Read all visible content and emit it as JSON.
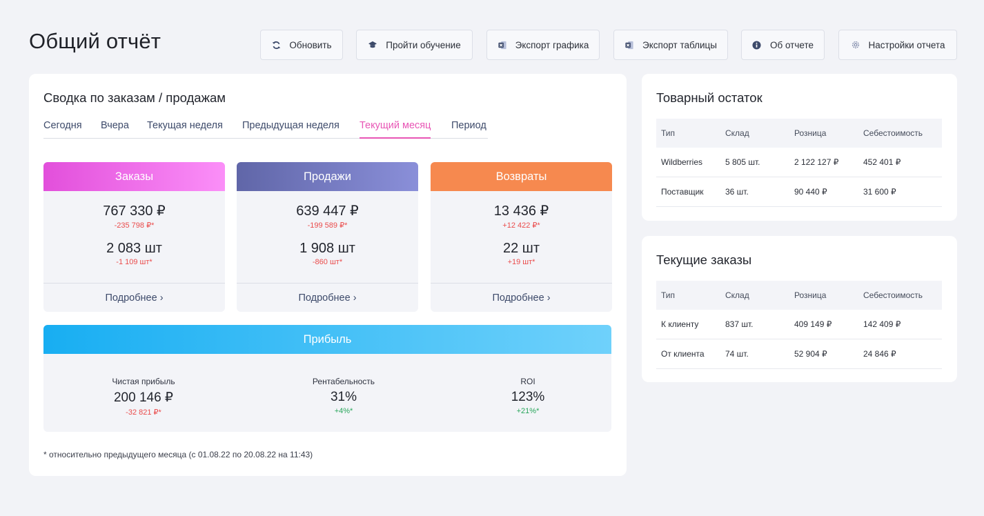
{
  "page": {
    "title": "Общий отчёт"
  },
  "toolbar": [
    {
      "label": "Обновить",
      "icon": "refresh-icon"
    },
    {
      "label": "Пройти обучение",
      "icon": "graduation-cap-icon"
    },
    {
      "label": "Экспорт графика",
      "icon": "excel-icon"
    },
    {
      "label": "Экспорт таблицы",
      "icon": "excel-icon"
    },
    {
      "label": "Об отчете",
      "icon": "info-icon"
    },
    {
      "label": "Настройки отчета",
      "icon": "gear-icon"
    }
  ],
  "summary": {
    "title": "Сводка по заказам / продажам",
    "tabs": [
      {
        "label": "Сегодня"
      },
      {
        "label": "Вчера"
      },
      {
        "label": "Текущая неделя"
      },
      {
        "label": "Предыдущая неделя"
      },
      {
        "label": "Текущий месяц"
      },
      {
        "label": "Период"
      }
    ],
    "active_tab": "Текущий месяц",
    "metrics": [
      {
        "title": "Заказы",
        "amount": "767 330 ₽",
        "amount_delta": "-235 798 ₽*",
        "qty": "2 083 шт",
        "qty_delta": "-1 109 шт*",
        "more": "Подробнее ›"
      },
      {
        "title": "Продажи",
        "amount": "639 447 ₽",
        "amount_delta": "-199 589 ₽*",
        "qty": "1 908 шт",
        "qty_delta": "-860 шт*",
        "more": "Подробнее ›"
      },
      {
        "title": "Возвраты",
        "amount": "13 436 ₽",
        "amount_delta": "+12 422 ₽*",
        "qty": "22 шт",
        "qty_delta": "+19 шт*",
        "more": "Подробнее ›"
      }
    ],
    "profit": {
      "title": "Прибыль",
      "items": [
        {
          "label": "Чистая прибыль",
          "value": "200 146 ₽",
          "delta": "-32 821 ₽*"
        },
        {
          "label": "Рентабельность",
          "value": "31%",
          "delta": "+4%*"
        },
        {
          "label": "ROI",
          "value": "123%",
          "delta": "+21%*"
        }
      ]
    },
    "footnote": "* относительно предыдущего месяца (с 01.08.22 по 20.08.22 на 11:43)"
  },
  "stock": {
    "title": "Товарный остаток",
    "headers": [
      "Тип",
      "Склад",
      "Розница",
      "Себестоимость"
    ],
    "rows": [
      [
        "Wildberries",
        "5 805 шт.",
        "2 122 127 ₽",
        "452 401 ₽"
      ],
      [
        "Поставщик",
        "36 шт.",
        "90 440 ₽",
        "31 600 ₽"
      ]
    ]
  },
  "current_orders": {
    "title": "Текущие заказы",
    "headers": [
      "Тип",
      "Склад",
      "Розница",
      "Себестоимость"
    ],
    "rows": [
      [
        "К клиенту",
        "837 шт.",
        "409 149 ₽",
        "142 409 ₽"
      ],
      [
        "От клиента",
        "74 шт.",
        "52 904 ₽",
        "24 846 ₽"
      ]
    ]
  },
  "colors": {
    "accent_pink": "#e855b5",
    "orders_gradient": [
      "#e24fdb",
      "#fb8ff8"
    ],
    "sales_gradient": [
      "#6066a8",
      "#8a8fd9"
    ],
    "returns": "#f6894f",
    "profit_gradient": [
      "#18aef2",
      "#6fd1fb"
    ],
    "negative": "#ea4b4b",
    "positive": "#27a55a"
  }
}
